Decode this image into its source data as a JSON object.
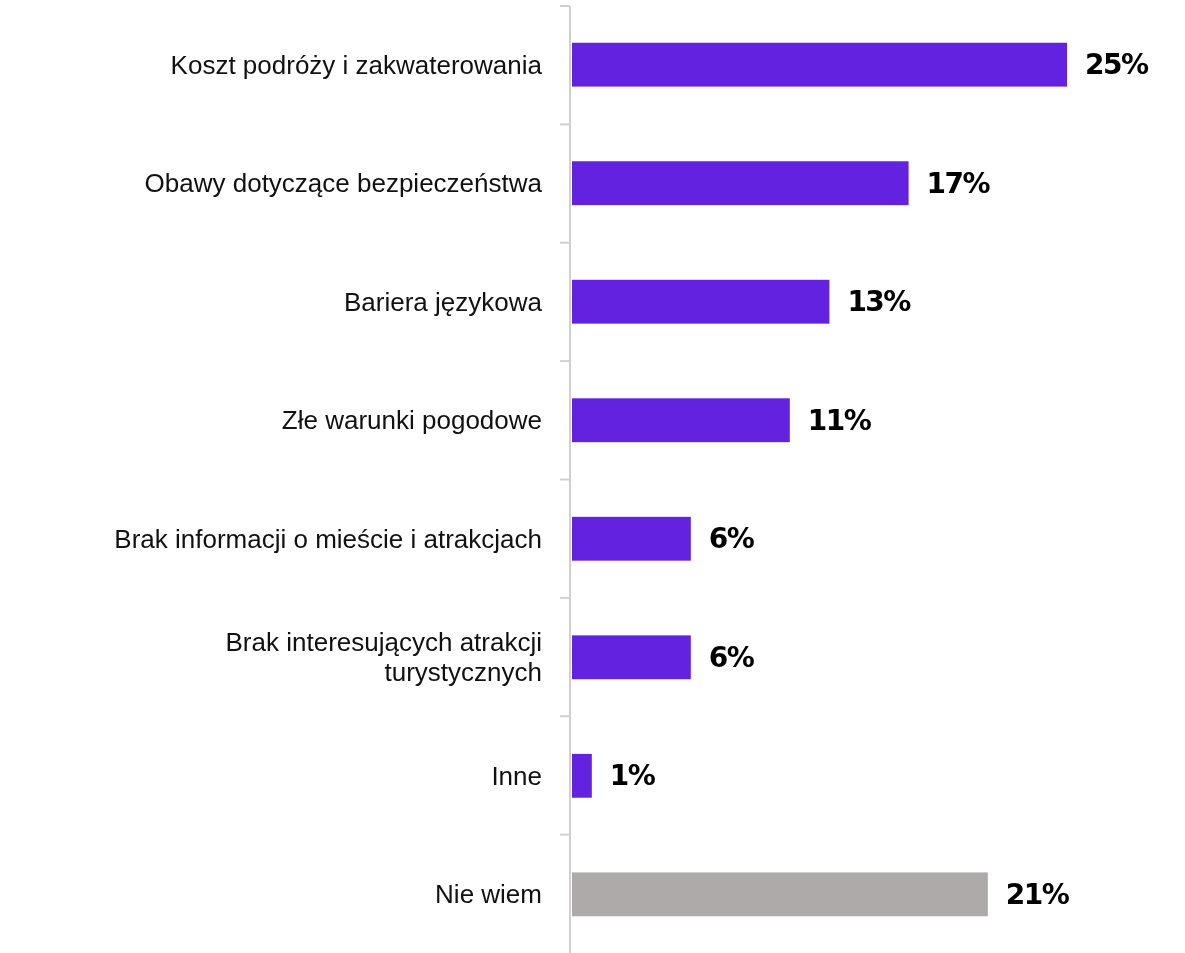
{
  "chart_data": {
    "type": "bar",
    "orientation": "horizontal",
    "data_labels": true,
    "categories": [
      "Koszt podróży i zakwaterowania",
      "Obawy dotyczące bezpieczeństwa",
      "Bariera językowa",
      "Złe warunki pogodowe",
      "Brak informacji o mieście i atrakcjach",
      "Brak interesujących atrakcji turystycznych",
      "Inne",
      "Nie wiem"
    ],
    "values": [
      25,
      17,
      13,
      11,
      6,
      6,
      1,
      21
    ],
    "value_labels": [
      "25%",
      "17%",
      "13%",
      "11%",
      "6%",
      "6%",
      "1%",
      "21%"
    ],
    "colors": [
      "#6222e0",
      "#6222e0",
      "#6222e0",
      "#6222e0",
      "#6222e0",
      "#6222e0",
      "#6222e0",
      "#aeaaaa"
    ]
  }
}
